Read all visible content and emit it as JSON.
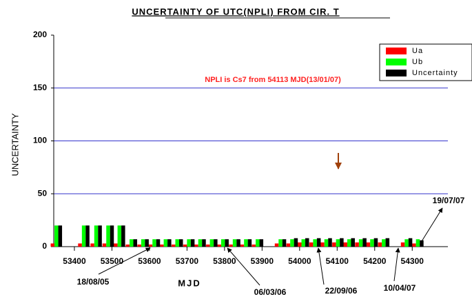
{
  "chart_data": {
    "type": "bar",
    "title": "UNCERTAINTY OF UTC(NPLI) FROM CIR. T",
    "xlabel": "MJD",
    "ylabel": "UNCERTAINTY",
    "x": [
      53352,
      53425,
      53458,
      53490,
      53520,
      53552,
      53583,
      53613,
      53643,
      53674,
      53705,
      53735,
      53766,
      53796,
      53827,
      53857,
      53888,
      53949,
      53980,
      54010,
      54041,
      54071,
      54102,
      54132,
      54163,
      54193,
      54224,
      54285,
      54315
    ],
    "series": [
      {
        "name": "Ua",
        "color": "#ff0000",
        "values": [
          3,
          3,
          3,
          3,
          3,
          2,
          2,
          2,
          2,
          2,
          2,
          2,
          2,
          2,
          2,
          2,
          2,
          3,
          3,
          4,
          4,
          4,
          4,
          4,
          4,
          4,
          4,
          4,
          3
        ]
      },
      {
        "name": "Ub",
        "color": "#00ff00",
        "values": [
          20,
          20,
          20,
          20,
          20,
          7,
          7,
          7,
          7,
          7,
          7,
          7,
          7,
          7,
          7,
          7,
          7,
          7,
          7,
          7,
          7,
          7,
          7,
          7,
          7,
          7,
          7,
          7,
          7
        ]
      },
      {
        "name": "Uncertainty",
        "color": "#000000",
        "values": [
          20,
          20,
          20,
          20,
          20,
          7,
          7,
          7,
          7,
          7,
          7,
          7,
          7,
          7,
          7,
          7,
          7,
          7,
          8,
          8,
          8,
          8,
          8,
          8,
          8,
          8,
          8,
          8,
          6
        ]
      }
    ],
    "xlim": [
      53345,
      54395
    ],
    "xticks": [
      53400,
      53500,
      53600,
      53700,
      53800,
      53900,
      54000,
      54100,
      54200,
      54300
    ],
    "ylim": [
      0,
      200
    ],
    "yticks": [
      0,
      50,
      100,
      150,
      200
    ],
    "grid": true,
    "grid_color": "#3333cc",
    "legend": "upper right",
    "annotations": [
      "NPLI is Cs7 from 54113 MJD(13/01/07)",
      "18/08/05",
      "06/03/06",
      "22/09/06",
      "10/04/07",
      "19/07/07"
    ]
  }
}
